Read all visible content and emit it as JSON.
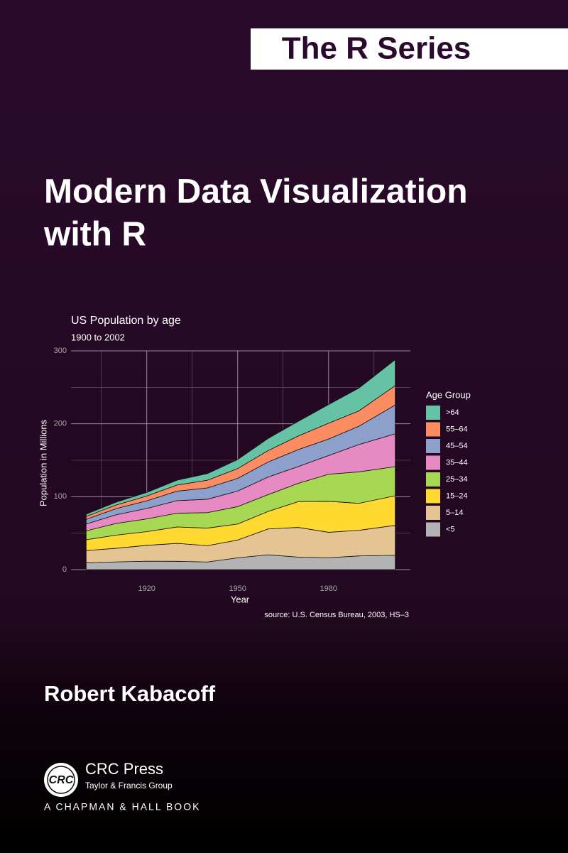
{
  "header": {
    "series": "The R Series"
  },
  "title": [
    "Modern Data Visualization",
    "with R"
  ],
  "chart_data": {
    "type": "stacked_area",
    "title": "US Population by age",
    "subtitle": "1900 to 2002",
    "x_label": "Year",
    "y_label": "Population in Millions",
    "source": "source: U.S. Census Bureau, 2003, HS–3",
    "legend_title": "Age Group",
    "legend": "right",
    "grid": true,
    "x": [
      1900,
      1910,
      1920,
      1930,
      1940,
      1950,
      1960,
      1970,
      1980,
      1990,
      2002
    ],
    "xlim": [
      1895,
      2007
    ],
    "xticks": [
      1920,
      1950,
      1980
    ],
    "x_minor_ticks": [
      1905,
      1935,
      1965,
      1995
    ],
    "ylim": [
      0,
      300
    ],
    "yticks": [
      0,
      100,
      200,
      300
    ],
    "y_minor_ticks": [
      50,
      150,
      250
    ],
    "series": [
      {
        "name": "<5",
        "color": "#b3b3b3",
        "values": [
          9.2,
          10.6,
          11.6,
          11.4,
          10.5,
          16.2,
          20.3,
          17.2,
          16.3,
          18.8,
          19.6
        ]
      },
      {
        "name": "5–14",
        "color": "#e5c494",
        "values": [
          16.9,
          18.7,
          21.7,
          24.6,
          22.4,
          24.3,
          35.5,
          40.7,
          34.9,
          35.1,
          41.1
        ]
      },
      {
        "name": "15–24",
        "color": "#ffd92f",
        "values": [
          14.9,
          18.1,
          18.8,
          22.5,
          24.0,
          22.1,
          24.0,
          35.4,
          42.5,
          37.0,
          40.6
        ]
      },
      {
        "name": "25–34",
        "color": "#a6d854",
        "values": [
          12.2,
          16.0,
          17.4,
          18.9,
          21.3,
          23.8,
          22.9,
          25.0,
          37.1,
          43.2,
          39.9
        ]
      },
      {
        "name": "35–44",
        "color": "#e78ac3",
        "values": [
          9.3,
          12.0,
          14.4,
          17.2,
          18.3,
          21.4,
          24.2,
          23.1,
          25.6,
          37.4,
          45.1
        ]
      },
      {
        "name": "45–54",
        "color": "#8da0cb",
        "values": [
          6.4,
          8.4,
          10.5,
          13.0,
          15.5,
          17.4,
          20.6,
          23.2,
          22.7,
          25.1,
          39.4
        ]
      },
      {
        "name": "55–64",
        "color": "#fc8d62",
        "values": [
          4.0,
          5.0,
          6.5,
          8.4,
          10.6,
          13.4,
          15.6,
          18.6,
          21.7,
          21.1,
          26.6
        ]
      },
      {
        "name": ">64",
        "color": "#66c2a5",
        "values": [
          3.1,
          3.9,
          4.9,
          6.6,
          9.0,
          12.3,
          16.6,
          20.1,
          25.5,
          31.2,
          35.6
        ]
      }
    ]
  },
  "author": "Robert Kabacoff",
  "publisher": {
    "logo": "CRC",
    "name": "CRC Press",
    "group": "Taylor & Francis Group",
    "imprint": "A CHAPMAN & HALL BOOK"
  }
}
